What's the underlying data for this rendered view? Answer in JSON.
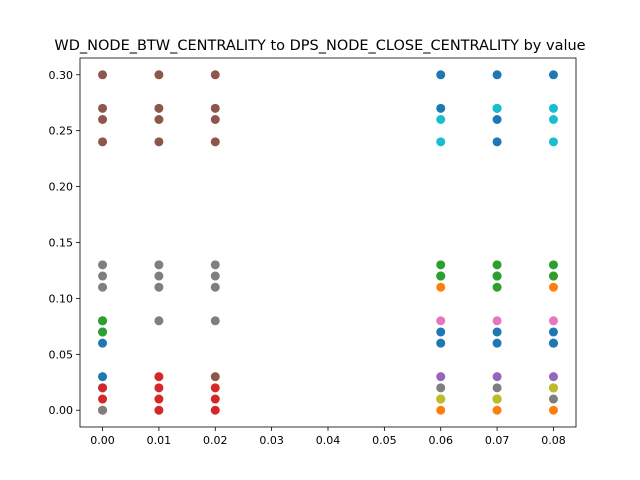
{
  "chart_data": {
    "type": "scatter",
    "title": "WD_NODE_BTW_CENTRALITY to DPS_NODE_CLOSE_CENTRALITY by value",
    "xlabel": "",
    "ylabel": "",
    "xlim": [
      -0.004,
      0.084
    ],
    "ylim": [
      -0.015,
      0.315
    ],
    "xticks": [
      0.0,
      0.01,
      0.02,
      0.03,
      0.04,
      0.05,
      0.06,
      0.07,
      0.08
    ],
    "xtick_labels": [
      "0.00",
      "0.01",
      "0.02",
      "0.03",
      "0.04",
      "0.05",
      "0.06",
      "0.07",
      "0.08"
    ],
    "yticks": [
      0.0,
      0.05,
      0.1,
      0.15,
      0.2,
      0.25,
      0.3
    ],
    "ytick_labels": [
      "0.00",
      "0.05",
      "0.10",
      "0.15",
      "0.20",
      "0.25",
      "0.30"
    ],
    "grid": false,
    "legend": false,
    "series": [
      {
        "color": "#1f77b4",
        "x": [
          0,
          0,
          0,
          0,
          0,
          0.06,
          0.06,
          0.06,
          0.06,
          0.06,
          0.07,
          0.07,
          0.07,
          0.07,
          0.07,
          0.07,
          0.07,
          0.07,
          0.08,
          0.08,
          0.08,
          0.08
        ],
        "y": [
          0.03,
          0.02,
          0.06,
          0.07,
          0.08,
          0.3,
          0.27,
          0.12,
          0.07,
          0.06,
          0.3,
          0.27,
          0.26,
          0.24,
          0.12,
          0.07,
          0.06,
          0.01,
          0.3,
          0.07,
          0.06,
          0.06
        ]
      },
      {
        "color": "#ff7f0e",
        "x": [
          0.06,
          0.06,
          0.07,
          0.08,
          0.08,
          0.08
        ],
        "y": [
          0.11,
          0.0,
          0.0,
          0.12,
          0.11,
          0.0
        ]
      },
      {
        "color": "#2ca02c",
        "x": [
          0,
          0,
          0.06,
          0.06,
          0.07,
          0.07,
          0.07,
          0.08,
          0.08
        ],
        "y": [
          0.08,
          0.07,
          0.13,
          0.12,
          0.13,
          0.12,
          0.11,
          0.13,
          0.12
        ]
      },
      {
        "color": "#d62728",
        "x": [
          0,
          0,
          0,
          0.01,
          0.01,
          0.01,
          0.01,
          0.02,
          0.02,
          0.02
        ],
        "y": [
          0.02,
          0.01,
          0.0,
          0.02,
          0.01,
          0.0,
          0.03,
          0.02,
          0.01,
          0.0
        ]
      },
      {
        "color": "#9467bd",
        "x": [
          0.06,
          0.07,
          0.08
        ],
        "y": [
          0.03,
          0.03,
          0.03
        ]
      },
      {
        "color": "#8c564b",
        "x": [
          0,
          0,
          0,
          0,
          0.01,
          0.01,
          0.01,
          0.01,
          0.02,
          0.02,
          0.02,
          0.02,
          0.02
        ],
        "y": [
          0.3,
          0.27,
          0.26,
          0.24,
          0.3,
          0.27,
          0.26,
          0.24,
          0.3,
          0.27,
          0.26,
          0.24,
          0.03
        ]
      },
      {
        "color": "#e377c2",
        "x": [
          0.06,
          0.07,
          0.08
        ],
        "y": [
          0.08,
          0.08,
          0.08
        ]
      },
      {
        "color": "#7f7f7f",
        "x": [
          0,
          0,
          0,
          0,
          0.01,
          0.01,
          0.01,
          0.01,
          0.02,
          0.02,
          0.02,
          0.02,
          0.06,
          0.06,
          0.07,
          0.07,
          0.08,
          0.08
        ],
        "y": [
          0.13,
          0.12,
          0.11,
          0.0,
          0.13,
          0.12,
          0.11,
          0.08,
          0.13,
          0.12,
          0.11,
          0.08,
          0.02,
          0.01,
          0.02,
          0.01,
          0.01,
          0.02
        ]
      },
      {
        "color": "#bcbd22",
        "x": [
          0.06,
          0.07,
          0.08
        ],
        "y": [
          0.01,
          0.01,
          0.02
        ]
      },
      {
        "color": "#17becf",
        "x": [
          0.06,
          0.06,
          0.07,
          0.08,
          0.08,
          0.08
        ],
        "y": [
          0.26,
          0.24,
          0.27,
          0.27,
          0.26,
          0.24
        ]
      }
    ]
  }
}
